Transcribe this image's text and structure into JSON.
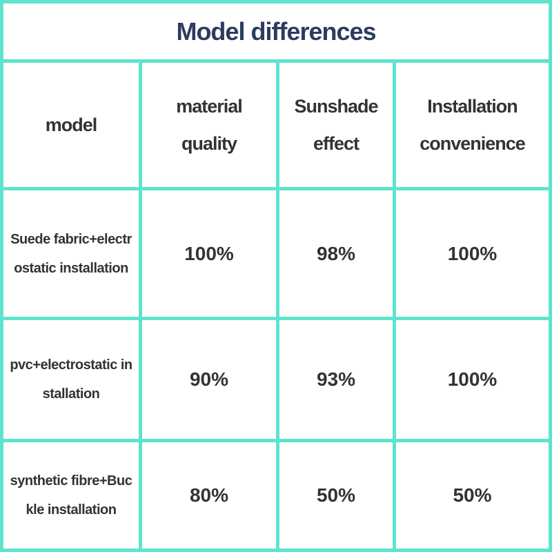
{
  "title": "Model differences",
  "table": {
    "header": [
      "model",
      "material quality",
      "Sunshade effect",
      "Installation convenience"
    ],
    "rows": [
      [
        "Suede fabric+electrostatic installation",
        "100%",
        "98%",
        "100%"
      ],
      [
        "pvc+electrostatic installation",
        "90%",
        "93%",
        "100%"
      ],
      [
        "synthetic fibre+Buckle installation",
        "80%",
        "50%",
        "50%"
      ]
    ]
  }
}
